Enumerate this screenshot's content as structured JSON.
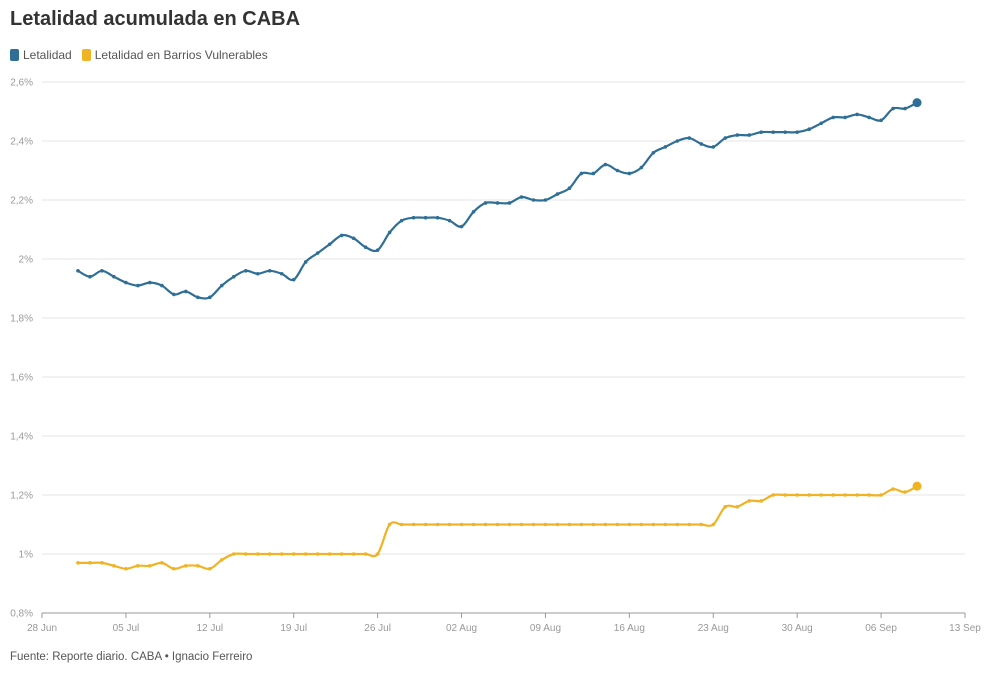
{
  "title": "Letalidad acumulada en CABA",
  "footer": "Fuente: Reporte diario. CABA • Ignacio Ferreiro",
  "colors": {
    "letalidad": "#2f6f96",
    "barrios": "#f0b323",
    "grid": "#e6e6e6",
    "axis": "#999999"
  },
  "chart_data": {
    "type": "line",
    "title": "Letalidad acumulada en CABA",
    "x_axis": {
      "min": "2020-06-28",
      "max": "2020-09-13",
      "ticks": [
        {
          "date": "2020-06-28",
          "label": "28 Jun"
        },
        {
          "date": "2020-07-05",
          "label": "05 Jul"
        },
        {
          "date": "2020-07-12",
          "label": "12 Jul"
        },
        {
          "date": "2020-07-19",
          "label": "19 Jul"
        },
        {
          "date": "2020-07-26",
          "label": "26 Jul"
        },
        {
          "date": "2020-08-02",
          "label": "02 Aug"
        },
        {
          "date": "2020-08-09",
          "label": "09 Aug"
        },
        {
          "date": "2020-08-16",
          "label": "16 Aug"
        },
        {
          "date": "2020-08-23",
          "label": "23 Aug"
        },
        {
          "date": "2020-08-30",
          "label": "30 Aug"
        },
        {
          "date": "2020-09-06",
          "label": "06 Sep"
        },
        {
          "date": "2020-09-13",
          "label": "13 Sep"
        }
      ]
    },
    "y_axis": {
      "min": 0.8,
      "max": 2.6,
      "ticks": [
        {
          "value": 0.8,
          "label": "0,8%"
        },
        {
          "value": 1.0,
          "label": "1%"
        },
        {
          "value": 1.2,
          "label": "1,2%"
        },
        {
          "value": 1.4,
          "label": "1,4%"
        },
        {
          "value": 1.6,
          "label": "1,6%"
        },
        {
          "value": 1.8,
          "label": "1,8%"
        },
        {
          "value": 2.0,
          "label": "2%"
        },
        {
          "value": 2.2,
          "label": "2,2%"
        },
        {
          "value": 2.4,
          "label": "2,4%"
        },
        {
          "value": 2.6,
          "label": "2,6%"
        }
      ]
    },
    "grid": true,
    "legend_position": "top-left",
    "x_start": "2020-07-01",
    "x_step_days": 1,
    "series": [
      {
        "name": "Letalidad",
        "color": "#2f6f96",
        "values": [
          1.96,
          1.94,
          1.96,
          1.94,
          1.92,
          1.91,
          1.92,
          1.91,
          1.88,
          1.89,
          1.87,
          1.87,
          1.91,
          1.94,
          1.96,
          1.95,
          1.96,
          1.95,
          1.93,
          1.99,
          2.02,
          2.05,
          2.08,
          2.07,
          2.04,
          2.03,
          2.09,
          2.13,
          2.14,
          2.14,
          2.14,
          2.13,
          2.11,
          2.16,
          2.19,
          2.19,
          2.19,
          2.21,
          2.2,
          2.2,
          2.22,
          2.24,
          2.29,
          2.29,
          2.32,
          2.3,
          2.29,
          2.31,
          2.36,
          2.38,
          2.4,
          2.41,
          2.39,
          2.38,
          2.41,
          2.42,
          2.42,
          2.43,
          2.43,
          2.43,
          2.43,
          2.44,
          2.46,
          2.48,
          2.48,
          2.49,
          2.48,
          2.47,
          2.51,
          2.51,
          2.53
        ]
      },
      {
        "name": "Letalidad en Barrios Vulnerables",
        "color": "#f0b323",
        "values": [
          0.97,
          0.97,
          0.97,
          0.96,
          0.95,
          0.96,
          0.96,
          0.97,
          0.95,
          0.96,
          0.96,
          0.95,
          0.98,
          1.0,
          1.0,
          1.0,
          1.0,
          1.0,
          1.0,
          1.0,
          1.0,
          1.0,
          1.0,
          1.0,
          1.0,
          1.0,
          1.1,
          1.1,
          1.1,
          1.1,
          1.1,
          1.1,
          1.1,
          1.1,
          1.1,
          1.1,
          1.1,
          1.1,
          1.1,
          1.1,
          1.1,
          1.1,
          1.1,
          1.1,
          1.1,
          1.1,
          1.1,
          1.1,
          1.1,
          1.1,
          1.1,
          1.1,
          1.1,
          1.1,
          1.16,
          1.16,
          1.18,
          1.18,
          1.2,
          1.2,
          1.2,
          1.2,
          1.2,
          1.2,
          1.2,
          1.2,
          1.2,
          1.2,
          1.22,
          1.21,
          1.23
        ]
      }
    ]
  }
}
